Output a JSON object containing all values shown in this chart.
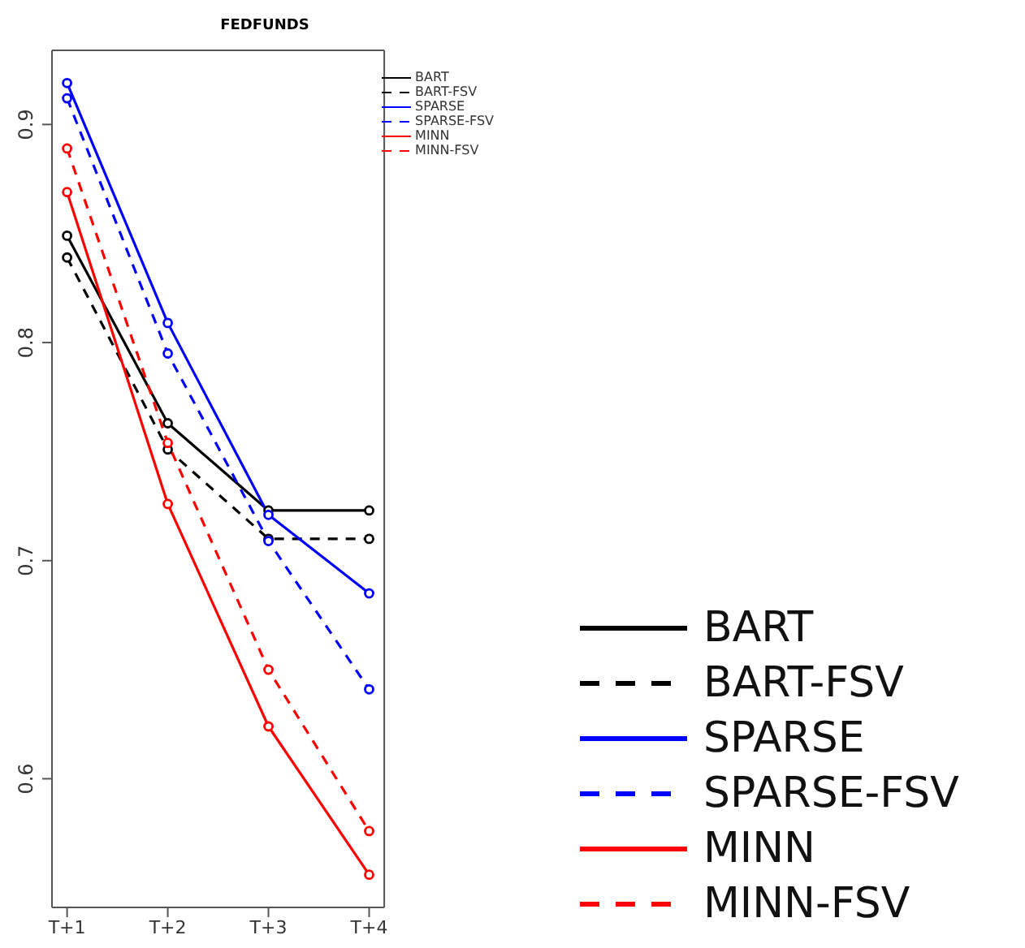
{
  "chart_data": {
    "type": "line",
    "title": "FEDFUNDS",
    "categories": [
      "T+1",
      "T+2",
      "T+3",
      "T+4"
    ],
    "series": [
      {
        "name": "BART",
        "color": "#000000",
        "line_style": "solid",
        "values": [
          0.849,
          0.763,
          0.723,
          0.723
        ]
      },
      {
        "name": "BART-FSV",
        "color": "#000000",
        "line_style": "dashed",
        "values": [
          0.839,
          0.751,
          0.71,
          0.71
        ]
      },
      {
        "name": "SPARSE",
        "color": "#0000ff",
        "line_style": "solid",
        "values": [
          0.919,
          0.809,
          0.721,
          0.685
        ]
      },
      {
        "name": "SPARSE-FSV",
        "color": "#0000ff",
        "line_style": "dashed",
        "values": [
          0.912,
          0.795,
          0.709,
          0.641
        ]
      },
      {
        "name": "MINN",
        "color": "#ff0000",
        "line_style": "solid",
        "values": [
          0.869,
          0.726,
          0.624,
          0.556
        ]
      },
      {
        "name": "MINN-FSV",
        "color": "#ff0000",
        "line_style": "dashed",
        "values": [
          0.889,
          0.754,
          0.65,
          0.576
        ]
      }
    ],
    "ylim": [
      0.541,
      0.934
    ],
    "yticks": [
      0.6,
      0.7,
      0.8,
      0.9
    ],
    "grid": false,
    "legend": "top right",
    "marker": "circle"
  }
}
